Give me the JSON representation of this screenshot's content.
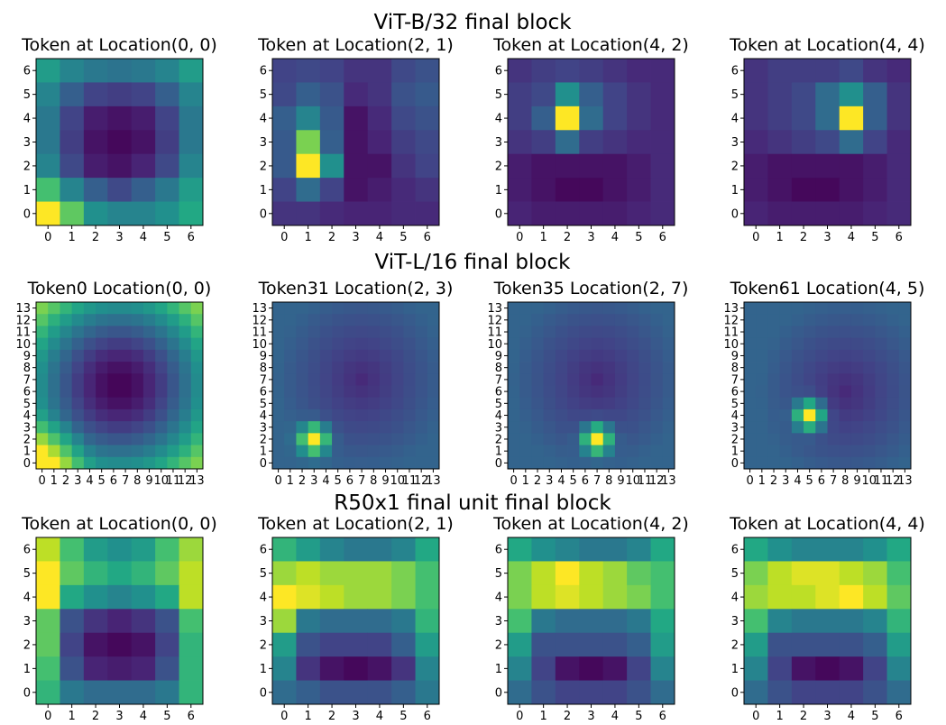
{
  "figure": {
    "colormap": "viridis",
    "rows": [
      {
        "title": "ViT-B/32 final block"
      },
      {
        "title": "ViT-L/16 final block"
      },
      {
        "title": "R50x1 final unit final block"
      }
    ]
  },
  "chart_data": [
    {
      "type": "heatmap",
      "row": 0,
      "col": 0,
      "grid_size": 7,
      "title": "Token at Location(0, 0)",
      "x_ticks": [
        "0",
        "1",
        "2",
        "3",
        "4",
        "5",
        "6"
      ],
      "y_ticks": [
        "0",
        "1",
        "2",
        "3",
        "4",
        "5",
        "6"
      ],
      "values": [
        [
          0.55,
          0.45,
          0.4,
          0.38,
          0.4,
          0.45,
          0.55
        ],
        [
          0.45,
          0.3,
          0.2,
          0.18,
          0.2,
          0.3,
          0.45
        ],
        [
          0.4,
          0.2,
          0.08,
          0.05,
          0.08,
          0.2,
          0.4
        ],
        [
          0.4,
          0.18,
          0.05,
          0.02,
          0.05,
          0.18,
          0.4
        ],
        [
          0.45,
          0.22,
          0.08,
          0.05,
          0.1,
          0.22,
          0.45
        ],
        [
          0.7,
          0.45,
          0.3,
          0.22,
          0.3,
          0.4,
          0.55
        ],
        [
          1.0,
          0.75,
          0.5,
          0.45,
          0.45,
          0.5,
          0.6
        ]
      ]
    },
    {
      "type": "heatmap",
      "row": 0,
      "col": 1,
      "grid_size": 7,
      "title": "Token at Location(2, 1)",
      "x_ticks": [
        "0",
        "1",
        "2",
        "3",
        "4",
        "5",
        "6"
      ],
      "y_ticks": [
        "0",
        "1",
        "2",
        "3",
        "4",
        "5",
        "6"
      ],
      "values": [
        [
          0.2,
          0.22,
          0.2,
          0.15,
          0.15,
          0.22,
          0.25
        ],
        [
          0.22,
          0.3,
          0.25,
          0.12,
          0.15,
          0.25,
          0.28
        ],
        [
          0.3,
          0.45,
          0.28,
          0.05,
          0.12,
          0.22,
          0.25
        ],
        [
          0.28,
          0.8,
          0.3,
          0.05,
          0.1,
          0.18,
          0.22
        ],
        [
          0.28,
          1.0,
          0.5,
          0.05,
          0.05,
          0.15,
          0.2
        ],
        [
          0.2,
          0.35,
          0.2,
          0.05,
          0.08,
          0.12,
          0.15
        ],
        [
          0.15,
          0.15,
          0.12,
          0.1,
          0.1,
          0.12,
          0.12
        ]
      ]
    },
    {
      "type": "heatmap",
      "row": 0,
      "col": 2,
      "grid_size": 7,
      "title": "Token at Location(4, 2)",
      "x_ticks": [
        "0",
        "1",
        "2",
        "3",
        "4",
        "5",
        "6"
      ],
      "y_ticks": [
        "0",
        "1",
        "2",
        "3",
        "4",
        "5",
        "6"
      ],
      "values": [
        [
          0.15,
          0.18,
          0.2,
          0.18,
          0.15,
          0.12,
          0.12
        ],
        [
          0.18,
          0.22,
          0.5,
          0.3,
          0.2,
          0.15,
          0.12
        ],
        [
          0.18,
          0.3,
          1.0,
          0.35,
          0.2,
          0.15,
          0.12
        ],
        [
          0.15,
          0.18,
          0.35,
          0.18,
          0.15,
          0.12,
          0.12
        ],
        [
          0.08,
          0.05,
          0.05,
          0.05,
          0.05,
          0.08,
          0.12
        ],
        [
          0.08,
          0.05,
          0.02,
          0.02,
          0.05,
          0.08,
          0.12
        ],
        [
          0.1,
          0.08,
          0.08,
          0.08,
          0.08,
          0.1,
          0.12
        ]
      ]
    },
    {
      "type": "heatmap",
      "row": 0,
      "col": 3,
      "grid_size": 7,
      "title": "Token at Location(4, 4)",
      "x_ticks": [
        "0",
        "1",
        "2",
        "3",
        "4",
        "5",
        "6"
      ],
      "y_ticks": [
        "0",
        "1",
        "2",
        "3",
        "4",
        "5",
        "6"
      ],
      "values": [
        [
          0.15,
          0.18,
          0.18,
          0.18,
          0.22,
          0.15,
          0.12
        ],
        [
          0.15,
          0.18,
          0.22,
          0.35,
          0.5,
          0.3,
          0.15
        ],
        [
          0.15,
          0.18,
          0.22,
          0.35,
          1.0,
          0.3,
          0.15
        ],
        [
          0.12,
          0.15,
          0.18,
          0.22,
          0.35,
          0.2,
          0.12
        ],
        [
          0.08,
          0.05,
          0.05,
          0.05,
          0.05,
          0.08,
          0.12
        ],
        [
          0.08,
          0.05,
          0.02,
          0.02,
          0.05,
          0.08,
          0.12
        ],
        [
          0.1,
          0.08,
          0.08,
          0.08,
          0.08,
          0.1,
          0.12
        ]
      ]
    },
    {
      "type": "heatmap",
      "row": 1,
      "col": 0,
      "grid_size": 14,
      "title": "Token0 Location(0, 0)",
      "x_ticks": [
        "0",
        "1",
        "2",
        "3",
        "4",
        "5",
        "6",
        "7",
        "8",
        "9",
        "10",
        "11",
        "12",
        "13"
      ],
      "y_ticks": [
        "0",
        "1",
        "2",
        "3",
        "4",
        "5",
        "6",
        "7",
        "8",
        "9",
        "10",
        "11",
        "12",
        "13"
      ],
      "values_model": {
        "kind": "ring",
        "center": [
          6.5,
          6.5
        ],
        "radius": 9.0,
        "corner_peak": [
          13,
          0
        ]
      }
    },
    {
      "type": "heatmap",
      "row": 1,
      "col": 1,
      "grid_size": 14,
      "title": "Token31 Location(2, 3)",
      "x_ticks": [
        "0",
        "1",
        "2",
        "3",
        "4",
        "5",
        "6",
        "7",
        "8",
        "9",
        "10",
        "11",
        "12",
        "13"
      ],
      "y_ticks": [
        "0",
        "1",
        "2",
        "3",
        "4",
        "5",
        "6",
        "7",
        "8",
        "9",
        "10",
        "11",
        "12",
        "13"
      ],
      "values_model": {
        "kind": "peak",
        "peak": [
          11,
          3
        ],
        "dark_center": [
          6,
          7
        ]
      }
    },
    {
      "type": "heatmap",
      "row": 1,
      "col": 2,
      "grid_size": 14,
      "title": "Token35 Location(2, 7)",
      "x_ticks": [
        "0",
        "1",
        "2",
        "3",
        "4",
        "5",
        "6",
        "7",
        "8",
        "9",
        "10",
        "11",
        "12",
        "13"
      ],
      "y_ticks": [
        "0",
        "1",
        "2",
        "3",
        "4",
        "5",
        "6",
        "7",
        "8",
        "9",
        "10",
        "11",
        "12",
        "13"
      ],
      "values_model": {
        "kind": "peak",
        "peak": [
          11,
          7
        ],
        "dark_center": [
          6,
          7
        ]
      }
    },
    {
      "type": "heatmap",
      "row": 1,
      "col": 3,
      "grid_size": 14,
      "title": "Token61 Location(4, 5)",
      "x_ticks": [
        "0",
        "1",
        "2",
        "3",
        "4",
        "5",
        "6",
        "7",
        "8",
        "9",
        "10",
        "11",
        "12",
        "13"
      ],
      "y_ticks": [
        "0",
        "1",
        "2",
        "3",
        "4",
        "5",
        "6",
        "7",
        "8",
        "9",
        "10",
        "11",
        "12",
        "13"
      ],
      "values_model": {
        "kind": "peak",
        "peak": [
          9,
          5
        ],
        "dark_center": [
          7,
          8
        ]
      }
    },
    {
      "type": "heatmap",
      "row": 2,
      "col": 0,
      "grid_size": 7,
      "title": "Token at Location(0, 0)",
      "x_ticks": [
        "0",
        "1",
        "2",
        "3",
        "4",
        "5",
        "6"
      ],
      "y_ticks": [
        "0",
        "1",
        "2",
        "3",
        "4",
        "5",
        "6"
      ],
      "values": [
        [
          0.9,
          0.7,
          0.55,
          0.5,
          0.55,
          0.7,
          0.85
        ],
        [
          1.0,
          0.75,
          0.65,
          0.6,
          0.65,
          0.75,
          0.9
        ],
        [
          1.0,
          0.6,
          0.5,
          0.45,
          0.5,
          0.6,
          0.9
        ],
        [
          0.75,
          0.25,
          0.15,
          0.1,
          0.15,
          0.25,
          0.7
        ],
        [
          0.75,
          0.2,
          0.05,
          0.02,
          0.05,
          0.2,
          0.65
        ],
        [
          0.7,
          0.25,
          0.1,
          0.08,
          0.1,
          0.25,
          0.65
        ],
        [
          0.65,
          0.4,
          0.35,
          0.35,
          0.35,
          0.4,
          0.65
        ]
      ]
    },
    {
      "type": "heatmap",
      "row": 2,
      "col": 1,
      "grid_size": 7,
      "title": "Token at Location(2, 1)",
      "x_ticks": [
        "0",
        "1",
        "2",
        "3",
        "4",
        "5",
        "6"
      ],
      "y_ticks": [
        "0",
        "1",
        "2",
        "3",
        "4",
        "5",
        "6"
      ],
      "values": [
        [
          0.65,
          0.55,
          0.45,
          0.4,
          0.4,
          0.45,
          0.6
        ],
        [
          0.85,
          0.9,
          0.85,
          0.85,
          0.85,
          0.8,
          0.7
        ],
        [
          1.0,
          0.95,
          0.9,
          0.85,
          0.85,
          0.8,
          0.7
        ],
        [
          0.85,
          0.4,
          0.35,
          0.35,
          0.35,
          0.4,
          0.65
        ],
        [
          0.55,
          0.25,
          0.2,
          0.2,
          0.2,
          0.3,
          0.55
        ],
        [
          0.45,
          0.15,
          0.05,
          0.02,
          0.05,
          0.15,
          0.45
        ],
        [
          0.35,
          0.3,
          0.25,
          0.25,
          0.25,
          0.3,
          0.4
        ]
      ]
    },
    {
      "type": "heatmap",
      "row": 2,
      "col": 2,
      "grid_size": 7,
      "title": "Token at Location(4, 2)",
      "x_ticks": [
        "0",
        "1",
        "2",
        "3",
        "4",
        "5",
        "6"
      ],
      "y_ticks": [
        "0",
        "1",
        "2",
        "3",
        "4",
        "5",
        "6"
      ],
      "values": [
        [
          0.6,
          0.5,
          0.45,
          0.4,
          0.4,
          0.45,
          0.6
        ],
        [
          0.8,
          0.9,
          1.0,
          0.9,
          0.85,
          0.75,
          0.7
        ],
        [
          0.8,
          0.9,
          0.95,
          0.9,
          0.85,
          0.8,
          0.7
        ],
        [
          0.7,
          0.4,
          0.35,
          0.35,
          0.35,
          0.4,
          0.6
        ],
        [
          0.55,
          0.25,
          0.25,
          0.25,
          0.25,
          0.3,
          0.55
        ],
        [
          0.45,
          0.2,
          0.05,
          0.02,
          0.05,
          0.2,
          0.45
        ],
        [
          0.35,
          0.25,
          0.2,
          0.2,
          0.2,
          0.25,
          0.35
        ]
      ]
    },
    {
      "type": "heatmap",
      "row": 2,
      "col": 3,
      "grid_size": 7,
      "title": "Token at Location(4, 4)",
      "x_ticks": [
        "0",
        "1",
        "2",
        "3",
        "4",
        "5",
        "6"
      ],
      "y_ticks": [
        "0",
        "1",
        "2",
        "3",
        "4",
        "5",
        "6"
      ],
      "values": [
        [
          0.6,
          0.5,
          0.45,
          0.45,
          0.45,
          0.5,
          0.6
        ],
        [
          0.8,
          0.9,
          0.95,
          0.95,
          0.9,
          0.85,
          0.7
        ],
        [
          0.85,
          0.9,
          0.9,
          0.95,
          1.0,
          0.9,
          0.75
        ],
        [
          0.7,
          0.45,
          0.4,
          0.4,
          0.4,
          0.45,
          0.65
        ],
        [
          0.55,
          0.25,
          0.25,
          0.25,
          0.25,
          0.3,
          0.55
        ],
        [
          0.45,
          0.2,
          0.05,
          0.02,
          0.05,
          0.2,
          0.45
        ],
        [
          0.35,
          0.25,
          0.2,
          0.2,
          0.2,
          0.25,
          0.35
        ]
      ]
    }
  ]
}
